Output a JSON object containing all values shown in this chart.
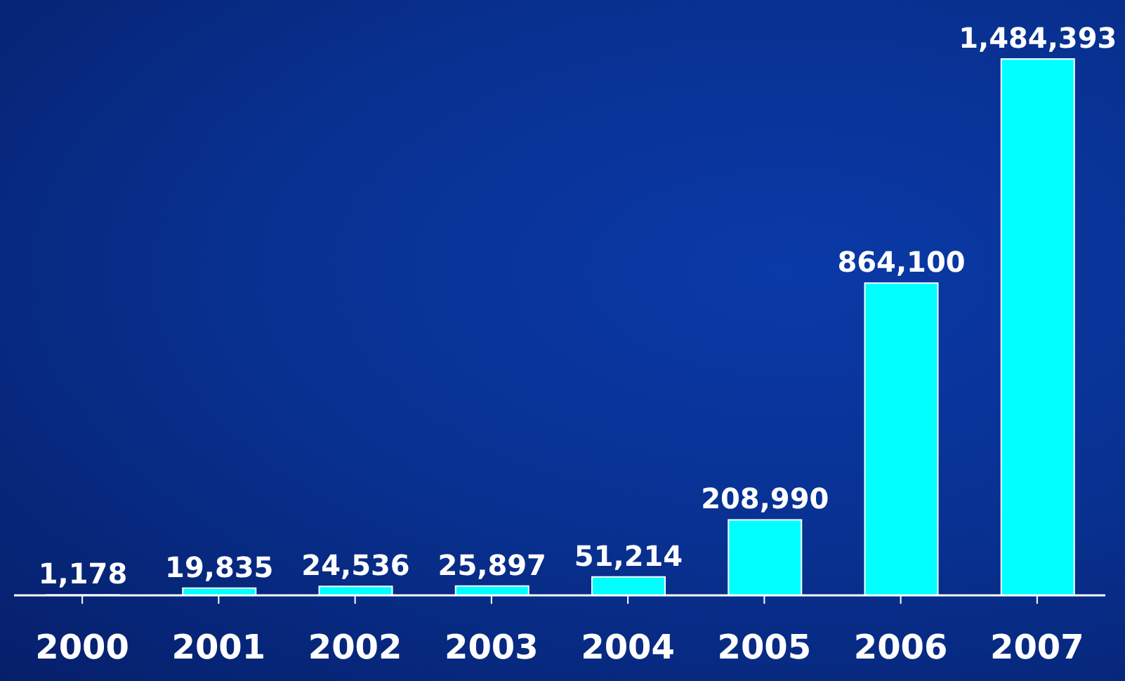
{
  "chart_data": {
    "type": "bar",
    "categories": [
      "2000",
      "2001",
      "2002",
      "2003",
      "2004",
      "2005",
      "2006",
      "2007"
    ],
    "values": [
      1178,
      19835,
      24536,
      25897,
      51214,
      208990,
      864100,
      1484393
    ],
    "value_labels": [
      "1,178",
      "19,835",
      "24,536",
      "25,897",
      "51,214",
      "208,990",
      "864,100",
      "1,484,393"
    ],
    "color": "#00ffff",
    "grid": false,
    "legend": false
  }
}
